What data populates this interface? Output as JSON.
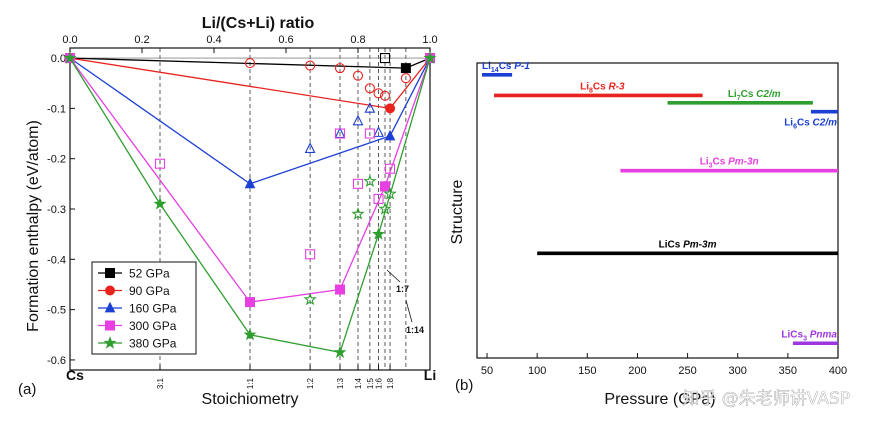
{
  "chart_data": [
    {
      "panel_label": "(a)",
      "type": "line",
      "title": "",
      "top_axis_label": "Li/(Cs+Li) ratio",
      "top_ticks": [
        "0.0",
        "0.2",
        "0.4",
        "0.6",
        "0.8",
        "1.0"
      ],
      "xlabel": "Stoichiometry",
      "ylabel": "Formation enthalpy (eV/atom)",
      "xlim": [
        0,
        1
      ],
      "ylim": [
        -0.62,
        0.02
      ],
      "yticks": [
        "0.0",
        "-0.1",
        "-0.2",
        "-0.3",
        "-0.4",
        "-0.5",
        "-0.6"
      ],
      "end_labels": {
        "left": "Cs",
        "right": "Li"
      },
      "stoich_ticks": [
        {
          "label": "3:1",
          "x": 0.25
        },
        {
          "label": "1:1",
          "x": 0.5
        },
        {
          "label": "1:2",
          "x": 0.667
        },
        {
          "label": "1:3",
          "x": 0.75
        },
        {
          "label": "1:4",
          "x": 0.8
        },
        {
          "label": "1:5",
          "x": 0.833
        },
        {
          "label": "1:6",
          "x": 0.857
        },
        {
          "label": "1:8",
          "x": 0.889
        }
      ],
      "extra_ticks": [
        {
          "label": "1:7",
          "x": 0.875
        },
        {
          "label": "1:14",
          "x": 0.933
        }
      ],
      "series": [
        {
          "name": "52 GPa",
          "color": "#000000",
          "marker": "square",
          "stable": [
            [
              0,
              0
            ],
            [
              0.933,
              -0.02
            ],
            [
              1,
              0
            ]
          ],
          "metastable": [
            [
              0.875,
              0.0
            ]
          ]
        },
        {
          "name": "90 GPa",
          "color": "#e8231f",
          "marker": "circle",
          "stable": [
            [
              0,
              0
            ],
            [
              0.889,
              -0.1
            ],
            [
              1,
              0
            ]
          ],
          "metastable": [
            [
              0.5,
              -0.01
            ],
            [
              0.667,
              -0.015
            ],
            [
              0.75,
              -0.02
            ],
            [
              0.8,
              -0.035
            ],
            [
              0.833,
              -0.06
            ],
            [
              0.857,
              -0.07
            ],
            [
              0.875,
              -0.075
            ],
            [
              0.933,
              -0.04
            ]
          ]
        },
        {
          "name": "160 GPa",
          "color": "#1c3fd4",
          "marker": "triangle",
          "stable": [
            [
              0,
              0
            ],
            [
              0.5,
              -0.25
            ],
            [
              0.889,
              -0.155
            ],
            [
              1,
              0
            ]
          ],
          "metastable": [
            [
              0.667,
              -0.18
            ],
            [
              0.75,
              -0.15
            ],
            [
              0.8,
              -0.125
            ],
            [
              0.833,
              -0.1
            ],
            [
              0.857,
              -0.148
            ]
          ]
        },
        {
          "name": "300 GPa",
          "color": "#e83fe3",
          "marker": "square",
          "stable": [
            [
              0,
              0
            ],
            [
              0.5,
              -0.485
            ],
            [
              0.75,
              -0.46
            ],
            [
              0.875,
              -0.255
            ],
            [
              1,
              0
            ]
          ],
          "metastable": [
            [
              0.25,
              -0.21
            ],
            [
              0.667,
              -0.39
            ],
            [
              0.75,
              -0.15
            ],
            [
              0.8,
              -0.25
            ],
            [
              0.833,
              -0.15
            ],
            [
              0.857,
              -0.28
            ],
            [
              0.889,
              -0.22
            ]
          ]
        },
        {
          "name": "380 GPa",
          "color": "#2f9e30",
          "marker": "star",
          "stable": [
            [
              0,
              0
            ],
            [
              0.25,
              -0.29
            ],
            [
              0.5,
              -0.55
            ],
            [
              0.75,
              -0.585
            ],
            [
              0.857,
              -0.35
            ],
            [
              1,
              0
            ]
          ],
          "metastable": [
            [
              0.667,
              -0.48
            ],
            [
              0.8,
              -0.31
            ],
            [
              0.833,
              -0.245
            ],
            [
              0.875,
              -0.3
            ],
            [
              0.889,
              -0.27
            ]
          ]
        }
      ]
    },
    {
      "panel_label": "(b)",
      "type": "bar",
      "orientation": "horizontal-range",
      "xlabel": "Pressure (GPa)",
      "ylabel": "Structure",
      "xlim": [
        40,
        400
      ],
      "xticks": [
        50,
        100,
        150,
        200,
        250,
        300,
        350,
        400
      ],
      "bars": [
        {
          "phase": "Li",
          "sub": "14",
          "tail": "Cs",
          "space_group": "P-1",
          "start": 45,
          "end": 75,
          "level": 0.04,
          "color": "#1c3fd4"
        },
        {
          "phase": "Li",
          "sub": "8",
          "tail": "Cs",
          "space_group": "R-3",
          "start": 57,
          "end": 265,
          "level": 0.11,
          "color": "#e8231f"
        },
        {
          "phase": "Li",
          "sub": "7",
          "tail": "Cs",
          "space_group": "C2/m",
          "start": 230,
          "end": 375,
          "level": 0.135,
          "color": "#2f9e30"
        },
        {
          "phase": "Li",
          "sub": "6",
          "tail": "Cs",
          "space_group": "C2/m",
          "start": 373,
          "end": 400,
          "level": 0.165,
          "color": "#1c3fd4"
        },
        {
          "phase": "Li",
          "sub": "3",
          "tail": "Cs",
          "space_group": "Pm-3n",
          "start": 183,
          "end": 400,
          "level": 0.365,
          "color": "#e83fe3"
        },
        {
          "phase": "LiCs",
          "sub": "",
          "tail": "",
          "space_group": "Pm-3m",
          "start": 100,
          "end": 400,
          "level": 0.645,
          "color": "#000000"
        },
        {
          "phase": "LiCs",
          "sub": "3",
          "tail": "",
          "space_group": "Pnma",
          "start": 355,
          "end": 400,
          "level": 0.95,
          "color": "#9b35e0"
        }
      ]
    }
  ],
  "watermark": "知乎 @朱老师讲VASP"
}
